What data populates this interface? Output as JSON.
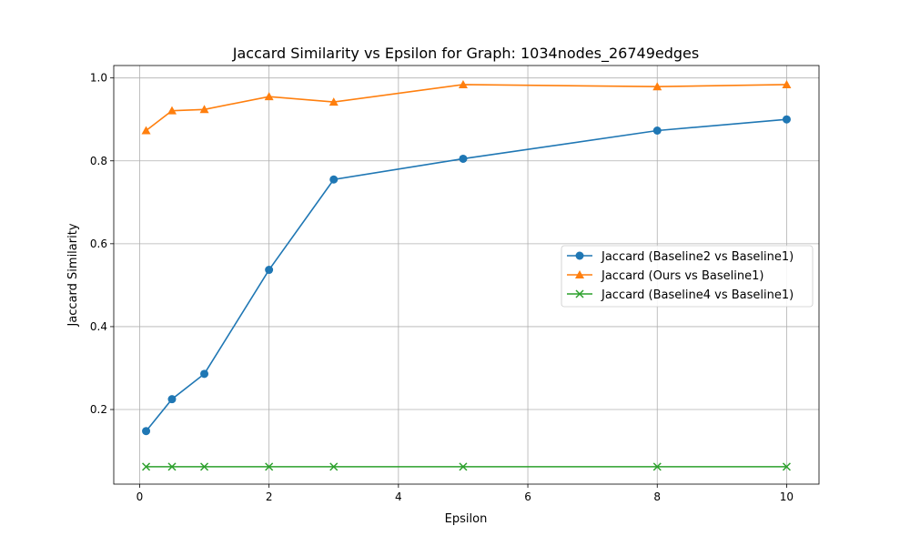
{
  "chart_data": {
    "type": "line",
    "title": "Jaccard Similarity vs Epsilon for Graph: 1034nodes_26749edges",
    "xlabel": "Epsilon",
    "ylabel": "Jaccard Similarity",
    "xlim": [
      -0.4,
      10.5
    ],
    "ylim": [
      0.02,
      1.03
    ],
    "x_ticks": [
      0,
      2,
      4,
      6,
      8,
      10
    ],
    "y_ticks": [
      0.2,
      0.4,
      0.6,
      0.8,
      1.0
    ],
    "x_tick_labels": [
      "0",
      "2",
      "4",
      "6",
      "8",
      "10"
    ],
    "y_tick_labels": [
      "0.2",
      "0.4",
      "0.6",
      "0.8",
      "1.0"
    ],
    "grid": true,
    "legend_position": "center-right",
    "x": [
      0.1,
      0.5,
      1,
      2,
      3,
      5,
      8,
      10
    ],
    "series": [
      {
        "name": "Jaccard (Baseline2 vs Baseline1)",
        "color": "#1f77b4",
        "marker": "circle",
        "values": [
          0.148,
          0.225,
          0.286,
          0.537,
          0.755,
          0.805,
          0.873,
          0.9
        ]
      },
      {
        "name": "Jaccard (Ours vs Baseline1)",
        "color": "#ff7f0e",
        "marker": "triangle",
        "values": [
          0.873,
          0.921,
          0.924,
          0.955,
          0.942,
          0.984,
          0.979,
          0.984
        ]
      },
      {
        "name": "Jaccard (Baseline4 vs Baseline1)",
        "color": "#2ca02c",
        "marker": "x",
        "values": [
          0.062,
          0.062,
          0.062,
          0.062,
          0.062,
          0.062,
          0.062,
          0.062
        ]
      }
    ]
  }
}
